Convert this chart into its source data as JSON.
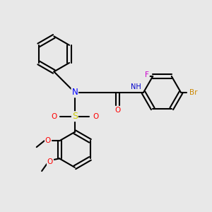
{
  "background_color": "#e8e8e8",
  "bond_color": "#000000",
  "atom_colors": {
    "N": "#0000ff",
    "O": "#ff0000",
    "S": "#cccc00",
    "F": "#cc00cc",
    "Br": "#cc8800",
    "NH": "#0000cc",
    "C": "#000000"
  },
  "figsize": [
    3.0,
    3.0
  ],
  "dpi": 100
}
